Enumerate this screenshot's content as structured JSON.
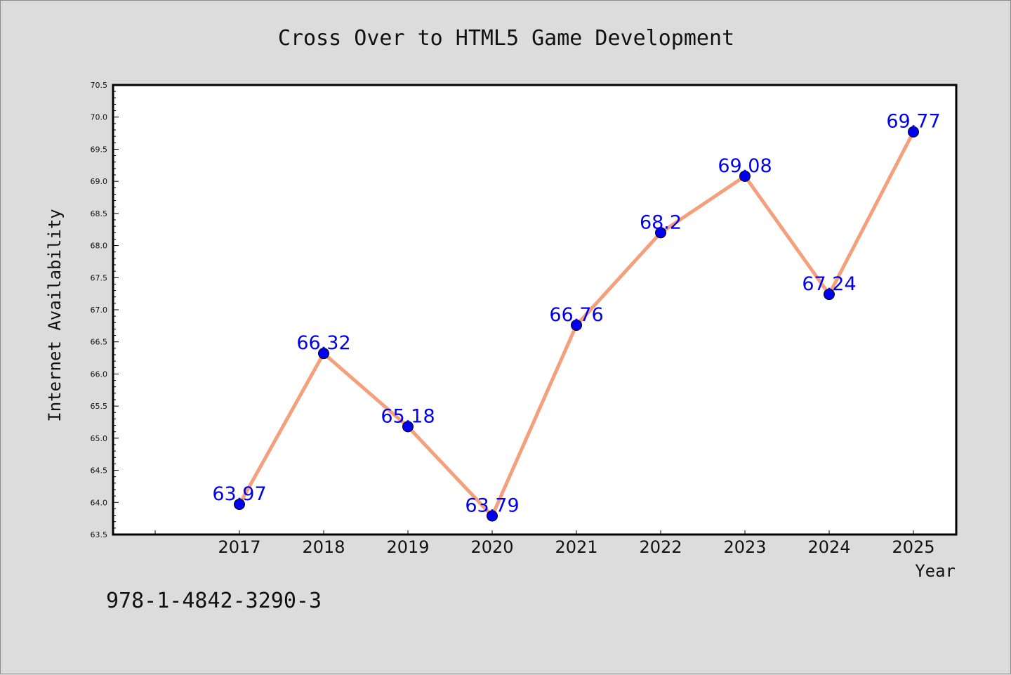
{
  "chart_data": {
    "type": "line",
    "title": "Cross Over to HTML5 Game Development",
    "xlabel": "Year",
    "ylabel": "Internet Availability",
    "categories": [
      "2017",
      "2018",
      "2019",
      "2020",
      "2021",
      "2022",
      "2023",
      "2024",
      "2025"
    ],
    "series": [
      {
        "values": [
          63.97,
          66.32,
          65.18,
          63.79,
          66.76,
          68.2,
          69.08,
          67.24,
          69.77
        ],
        "line_color": "#f4a07c",
        "marker_color": "#0000ee"
      }
    ],
    "ylim": [
      63.5,
      70.5
    ],
    "yticks": [
      63.5,
      64.0,
      64.5,
      65.0,
      65.5,
      66.0,
      66.5,
      67.0,
      67.5,
      68.0,
      68.5,
      69.0,
      69.5,
      70.0,
      70.5
    ],
    "data_labels": [
      "63.97",
      "66.32",
      "65.18",
      "63.79",
      "66.76",
      "68.2",
      "69.08",
      "67.24",
      "69.77"
    ],
    "grid": false,
    "background": "#dcdcdc",
    "plot_background": "#ffffff",
    "footnote": "978-1-4842-3290-3"
  }
}
